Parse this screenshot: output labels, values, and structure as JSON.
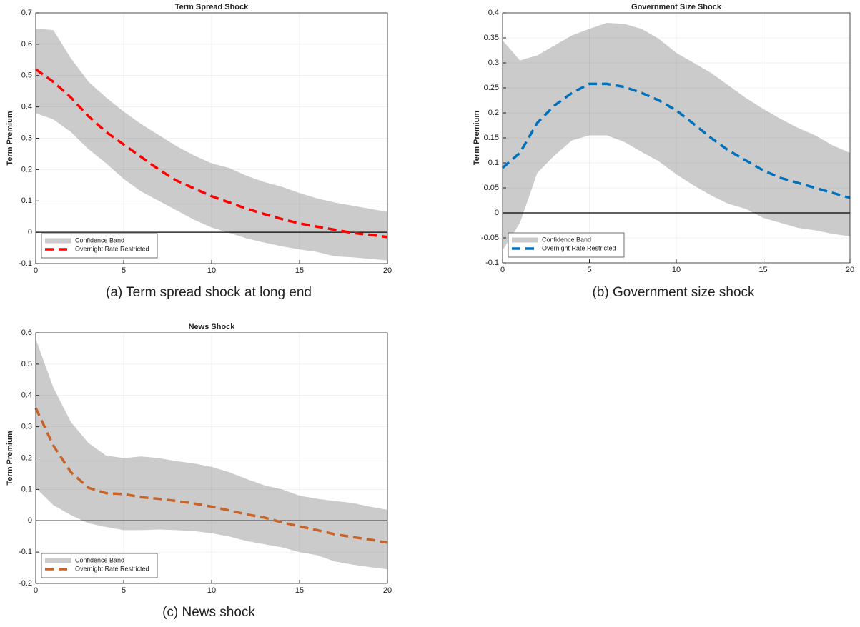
{
  "chart_data": [
    {
      "type": "line",
      "title": "Term Spread Shock",
      "ylabel": "Term Premium",
      "caption": "(a)  Term spread shock at long end",
      "x": [
        0,
        1,
        2,
        3,
        4,
        5,
        6,
        7,
        8,
        9,
        10,
        11,
        12,
        13,
        14,
        15,
        16,
        17,
        18,
        19,
        20
      ],
      "xlim": [
        0,
        20
      ],
      "xticks": [
        0,
        5,
        10,
        15,
        20
      ],
      "ylim": [
        -0.1,
        0.7
      ],
      "yticks": [
        -0.1,
        0,
        0.1,
        0.2,
        0.3,
        0.4,
        0.5,
        0.6,
        0.7
      ],
      "grid": true,
      "legend": "lower left",
      "hline": 0,
      "series": [
        {
          "name": "Confidence Band",
          "color": "#cccbcb",
          "upper": [
            0.65,
            0.645,
            0.555,
            0.48,
            0.43,
            0.385,
            0.345,
            0.31,
            0.275,
            0.245,
            0.22,
            0.205,
            0.18,
            0.16,
            0.145,
            0.125,
            0.108,
            0.095,
            0.085,
            0.075,
            0.065
          ],
          "lower": [
            0.38,
            0.36,
            0.32,
            0.265,
            0.22,
            0.17,
            0.13,
            0.1,
            0.07,
            0.04,
            0.015,
            -0.002,
            -0.02,
            -0.033,
            -0.045,
            -0.055,
            -0.063,
            -0.077,
            -0.08,
            -0.085,
            -0.09
          ]
        },
        {
          "name": "Overnight Rate Restricted",
          "color": "#ff0000",
          "values": [
            0.52,
            0.48,
            0.43,
            0.37,
            0.32,
            0.28,
            0.24,
            0.2,
            0.165,
            0.14,
            0.115,
            0.095,
            0.075,
            0.058,
            0.042,
            0.028,
            0.018,
            0.008,
            -0.002,
            -0.008,
            -0.015
          ]
        }
      ]
    },
    {
      "type": "line",
      "title": "Government Size Shock",
      "ylabel": "Term Premium",
      "caption": "(b)  Government size shock",
      "x": [
        0,
        1,
        2,
        3,
        4,
        5,
        6,
        7,
        8,
        9,
        10,
        11,
        12,
        13,
        14,
        15,
        16,
        17,
        18,
        19,
        20
      ],
      "xlim": [
        0,
        20
      ],
      "xticks": [
        0,
        5,
        10,
        15,
        20
      ],
      "ylim": [
        -0.1,
        0.4
      ],
      "yticks": [
        -0.1,
        -0.05,
        0,
        0.05,
        0.1,
        0.15,
        0.2,
        0.25,
        0.3,
        0.35,
        0.4
      ],
      "grid": true,
      "legend": "lower left",
      "hline": 0,
      "series": [
        {
          "name": "Confidence Band",
          "color": "#cccbcb",
          "upper": [
            0.345,
            0.305,
            0.315,
            0.335,
            0.355,
            0.368,
            0.38,
            0.378,
            0.368,
            0.348,
            0.32,
            0.3,
            0.28,
            0.255,
            0.23,
            0.208,
            0.188,
            0.17,
            0.155,
            0.135,
            0.12
          ],
          "lower": [
            -0.075,
            -0.02,
            0.08,
            0.115,
            0.145,
            0.155,
            0.155,
            0.142,
            0.122,
            0.103,
            0.077,
            0.055,
            0.035,
            0.018,
            0.008,
            -0.01,
            -0.02,
            -0.03,
            -0.035,
            -0.042,
            -0.047
          ]
        },
        {
          "name": "Overnight Rate Restricted",
          "color": "#0072bd",
          "values": [
            0.09,
            0.12,
            0.18,
            0.215,
            0.24,
            0.258,
            0.258,
            0.252,
            0.24,
            0.225,
            0.205,
            0.178,
            0.15,
            0.125,
            0.105,
            0.085,
            0.07,
            0.06,
            0.05,
            0.04,
            0.03
          ]
        }
      ]
    },
    {
      "type": "line",
      "title": "News Shock",
      "ylabel": "Term Premium",
      "caption": "(c)  News shock",
      "x": [
        0,
        1,
        2,
        3,
        4,
        5,
        6,
        7,
        8,
        9,
        10,
        11,
        12,
        13,
        14,
        15,
        16,
        17,
        18,
        19,
        20
      ],
      "xlim": [
        0,
        20
      ],
      "xticks": [
        0,
        5,
        10,
        15,
        20
      ],
      "ylim": [
        -0.2,
        0.6
      ],
      "yticks": [
        -0.2,
        -0.1,
        0,
        0.1,
        0.2,
        0.3,
        0.4,
        0.5,
        0.6
      ],
      "grid": true,
      "legend": "lower left",
      "hline": 0,
      "series": [
        {
          "name": "Confidence Band",
          "color": "#cccbcb",
          "upper": [
            0.58,
            0.425,
            0.315,
            0.248,
            0.208,
            0.2,
            0.205,
            0.2,
            0.19,
            0.183,
            0.172,
            0.155,
            0.133,
            0.113,
            0.1,
            0.08,
            0.07,
            0.063,
            0.057,
            0.045,
            0.035
          ],
          "lower": [
            0.105,
            0.05,
            0.018,
            -0.008,
            -0.02,
            -0.03,
            -0.03,
            -0.028,
            -0.03,
            -0.033,
            -0.04,
            -0.05,
            -0.065,
            -0.075,
            -0.085,
            -0.1,
            -0.11,
            -0.13,
            -0.14,
            -0.148,
            -0.155
          ]
        },
        {
          "name": "Overnight Rate Restricted",
          "color": "#c8642a",
          "values": [
            0.36,
            0.24,
            0.155,
            0.105,
            0.088,
            0.085,
            0.075,
            0.07,
            0.063,
            0.055,
            0.045,
            0.033,
            0.02,
            0.01,
            -0.005,
            -0.018,
            -0.03,
            -0.043,
            -0.052,
            -0.06,
            -0.07
          ]
        }
      ]
    }
  ]
}
